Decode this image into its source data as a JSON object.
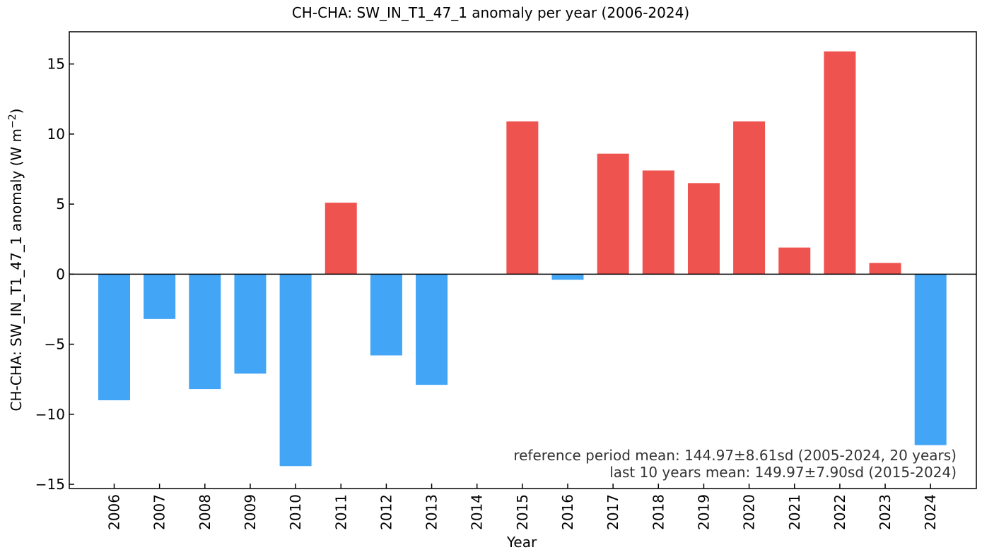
{
  "chart_data": {
    "type": "bar",
    "title": "CH-CHA: SW_IN_T1_47_1 anomaly per year (2006-2024)",
    "xlabel": "Year",
    "ylabel": "CH-CHA: SW_IN_T1_47_1 anomaly  (W m",
    "ylabel_unit_exp": "−2",
    "ylabel_close": ")",
    "categories": [
      "2006",
      "2007",
      "2008",
      "2009",
      "2010",
      "2011",
      "2012",
      "2013",
      "2014",
      "2015",
      "2016",
      "2017",
      "2018",
      "2019",
      "2020",
      "2021",
      "2022",
      "2023",
      "2024"
    ],
    "values": [
      -9.0,
      -3.2,
      -8.2,
      -7.1,
      -13.7,
      5.1,
      -5.8,
      -7.9,
      0.0,
      10.9,
      -0.4,
      8.6,
      7.4,
      6.5,
      10.9,
      1.9,
      15.9,
      0.8,
      -12.2
    ],
    "ylim": [
      -15.3,
      17.3
    ],
    "yticks": [
      -15,
      -10,
      -5,
      0,
      5,
      10,
      15
    ],
    "ytick_labels": [
      "−15",
      "−10",
      "−5",
      "0",
      "5",
      "10",
      "15"
    ],
    "positive_color": "#ef5350",
    "negative_color": "#42a5f5",
    "zero_line": true,
    "grid": false,
    "annotations": [
      "reference period mean: 144.97±8.61sd (2005-2024, 20 years)",
      "last 10 years mean: 149.97±7.90sd (2015-2024)"
    ]
  }
}
